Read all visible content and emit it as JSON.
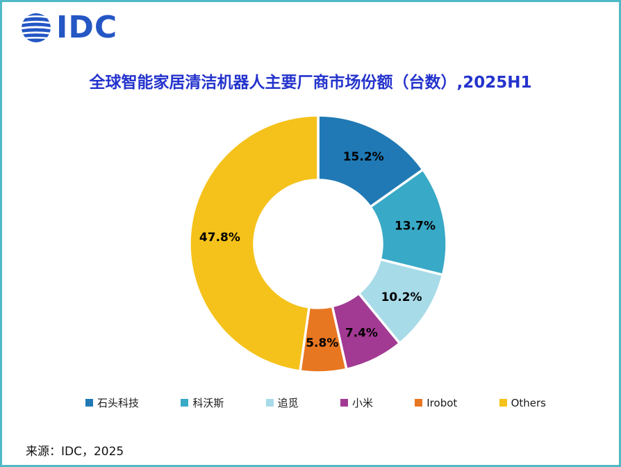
{
  "logo": {
    "text": "IDC"
  },
  "title": "全球智能家居清洁机器人主要厂商市场份额（台数）,2025H1",
  "source": "来源：IDC，2025",
  "colors": {
    "border": "#4FB9C6",
    "title_text": "#2433CC",
    "logo_blue": "#2456C4",
    "slice_label_text": "#000000"
  },
  "chart_data": {
    "type": "pie",
    "subtype": "donut",
    "title": "全球智能家居清洁机器人主要厂商市场份额（台数）,2025H1",
    "period": "2025H1",
    "unit": "台数 (units), market share %",
    "start_angle_deg": -90,
    "direction": "clockwise",
    "categories": [
      "石头科技",
      "科沃斯",
      "追觅",
      "小米",
      "Irobot",
      "Others"
    ],
    "values": [
      15.2,
      13.7,
      10.2,
      7.4,
      5.8,
      47.8
    ],
    "labels": [
      "15.2%",
      "13.7%",
      "10.2%",
      "7.4%",
      "5.8%",
      "47.8%"
    ],
    "colors": [
      "#2079B4",
      "#38A9C6",
      "#A8DBE8",
      "#A23A93",
      "#E87722",
      "#F5C21B"
    ],
    "legend_position": "bottom",
    "source": "IDC, 2025"
  }
}
